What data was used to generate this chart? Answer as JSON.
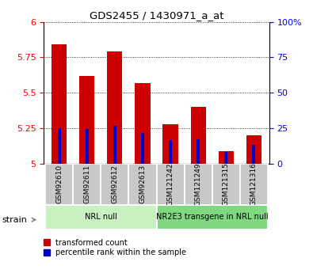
{
  "title": "GDS2455 / 1430971_a_at",
  "categories": [
    "GSM92610",
    "GSM92611",
    "GSM92612",
    "GSM92613",
    "GSM121242",
    "GSM121249",
    "GSM121315",
    "GSM121316"
  ],
  "red_values": [
    5.84,
    5.62,
    5.79,
    5.57,
    5.28,
    5.4,
    5.09,
    5.2
  ],
  "blue_values": [
    5.25,
    5.245,
    5.27,
    5.215,
    5.165,
    5.175,
    5.082,
    5.135
  ],
  "ylim_left": [
    5.0,
    6.0
  ],
  "ylim_right": [
    0,
    100
  ],
  "yticks_left": [
    5.0,
    5.25,
    5.5,
    5.75,
    6.0
  ],
  "ytick_labels_left": [
    "5",
    "5.25",
    "5.5",
    "5.75",
    "6"
  ],
  "yticks_right": [
    0,
    25,
    50,
    75,
    100
  ],
  "ytick_labels_right": [
    "0",
    "25",
    "50",
    "75",
    "100%"
  ],
  "groups": [
    {
      "label": "NRL null",
      "start": 0,
      "end": 3,
      "color": "#c8f0c0"
    },
    {
      "label": "NR2E3 transgene in NRL null",
      "start": 4,
      "end": 7,
      "color": "#80d880"
    }
  ],
  "bar_width": 0.55,
  "blue_bar_width": 0.12,
  "red_color": "#cc0000",
  "blue_color": "#0000cc",
  "baseline": 5.0,
  "strain_label": "strain",
  "legend_red": "transformed count",
  "legend_blue": "percentile rank within the sample",
  "cat_box_color": "#c8c8c8",
  "group1_color": "#c8f0c0",
  "group2_color": "#80d880"
}
